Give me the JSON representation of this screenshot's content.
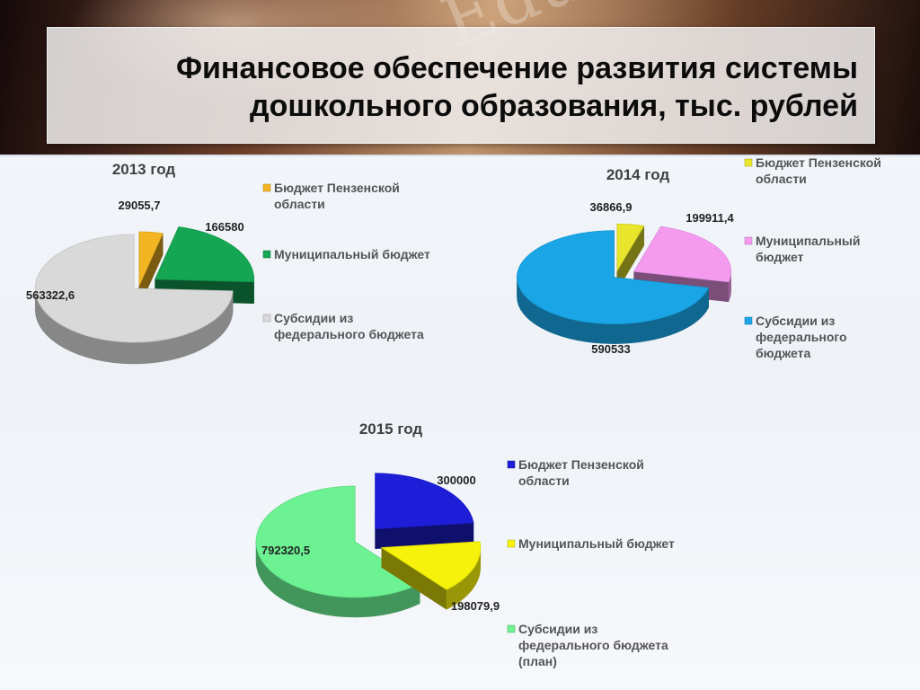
{
  "slide": {
    "title_line1": "Финансовое обеспечение развития системы",
    "title_line2": "дошкольного образования, тыс. рублей",
    "background_word": "Education"
  },
  "chart_data": [
    {
      "type": "pie",
      "title": "2013 год",
      "series": [
        {
          "name": "Бюджет Пензенской области",
          "value": 29055.7,
          "label": "29055,7",
          "color": "#f3b522"
        },
        {
          "name": "Муниципальный бюджет",
          "value": 166580,
          "label": "166580",
          "color": "#15a653"
        },
        {
          "name": "Субсидии из федерального бюджета",
          "value": 563322.6,
          "label": "563322,6",
          "color": "#d9d9d9"
        }
      ],
      "legend": {
        "position": "right",
        "entries": [
          [
            "Бюджет Пензенской",
            "области"
          ],
          [
            "Муниципальный бюджет"
          ],
          [
            "Субсидии из",
            "федерального бюджета"
          ]
        ]
      },
      "exploded": true,
      "three_d": true
    },
    {
      "type": "pie",
      "title": "2014 год",
      "series": [
        {
          "name": "Бюджет Пензенской области",
          "value": 36866.9,
          "label": "36866,9",
          "color": "#e8e52c"
        },
        {
          "name": "Муниципальный бюджет",
          "value": 199911.4,
          "label": "199911,4",
          "color": "#f49bf0"
        },
        {
          "name": "Субсидии из федерального бюджета",
          "value": 590533,
          "label": "590533",
          "color": "#1aa6e6"
        }
      ],
      "legend": {
        "position": "right",
        "entries": [
          [
            "Бюджет Пензенской",
            "области"
          ],
          [
            "Муниципальный",
            "бюджет"
          ],
          [
            "Субсидии из",
            "федерального",
            "бюджета"
          ]
        ]
      },
      "exploded": true,
      "three_d": true
    },
    {
      "type": "pie",
      "title": "2015 год",
      "series": [
        {
          "name": "Бюджет Пензенской области",
          "value": 300000,
          "label": "300000",
          "color": "#1e1ed8"
        },
        {
          "name": "Муниципальный бюджет",
          "value": 198079.9,
          "label": "198079,9",
          "color": "#f6f20b"
        },
        {
          "name": "Субсидии из федерального бюджета (план)",
          "value": 792320.5,
          "label": "792320,5",
          "color": "#6cf293"
        }
      ],
      "legend": {
        "position": "right",
        "entries": [
          [
            "Бюджет Пензенской",
            "области"
          ],
          [
            "Муниципальный бюджет"
          ],
          [
            "Субсидии из",
            "федерального бюджета",
            "(план)"
          ]
        ]
      },
      "exploded": true,
      "three_d": true
    }
  ]
}
